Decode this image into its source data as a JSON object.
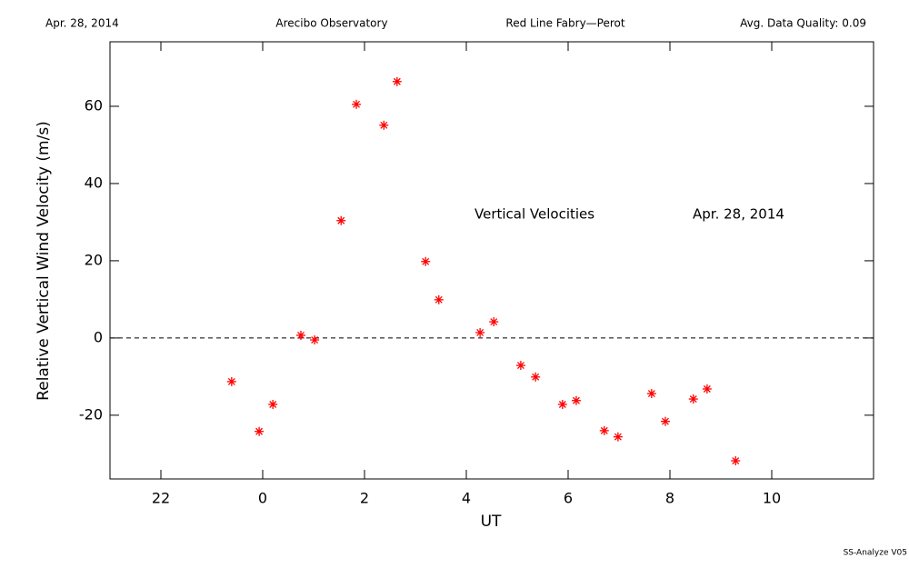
{
  "chart_data": {
    "type": "scatter",
    "header": [
      "Apr. 28, 2014",
      "Arecibo Observatory",
      "Red Line Fabry—Perot",
      "Avg. Data Quality: 0.09"
    ],
    "x_label": "UT",
    "y_label": "Relative Vertical Wind Velocity (m/s)",
    "annotations": [
      "Vertical Velocities",
      "Apr. 28, 2014"
    ],
    "footer": "SS-Analyze V05",
    "color": "#ff0000",
    "xlim": [
      -3,
      12
    ],
    "ylim": [
      -36.5,
      76.7
    ],
    "xticks": [
      {
        "value": -2,
        "label": "22"
      },
      0,
      2,
      4,
      6,
      8,
      10
    ],
    "yticks": [
      -20,
      0,
      20,
      40,
      60
    ],
    "hlines": [
      0
    ],
    "x": [
      -0.61,
      -0.07,
      0.2,
      0.75,
      1.02,
      1.54,
      1.84,
      2.38,
      2.64,
      3.2,
      3.46,
      4.27,
      4.54,
      5.07,
      5.36,
      5.89,
      6.16,
      6.71,
      6.98,
      7.64,
      7.91,
      8.46,
      8.73,
      9.29
    ],
    "values": [
      -11.3,
      -24.2,
      -17.2,
      0.7,
      -0.5,
      30.4,
      60.5,
      55.1,
      66.4,
      19.8,
      9.9,
      1.4,
      4.2,
      -7.1,
      -10.1,
      -17.2,
      -16.2,
      -24.0,
      -25.6,
      -14.4,
      -21.6,
      -15.8,
      -13.2,
      -31.8
    ]
  }
}
